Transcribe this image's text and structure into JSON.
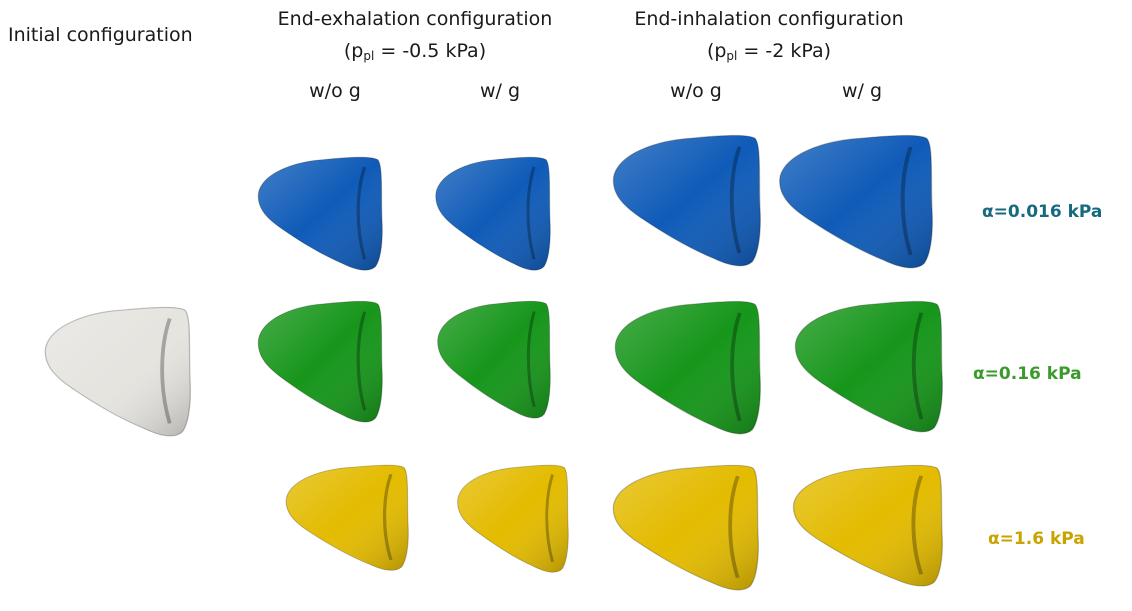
{
  "headers": {
    "initial": "Initial configuration",
    "exhalation": {
      "title": "End-exhalation configuration",
      "pressure_sub": "pl",
      "pressure_value": "= -0.5 kPa"
    },
    "inhalation": {
      "title": "End-inhalation configuration",
      "pressure_sub": "pl",
      "pressure_value": "= -2 kPa"
    },
    "col_wo_g": "w/o g",
    "col_w_g": "w/ g"
  },
  "rows": [
    {
      "label": "α=0.016 kPa",
      "color": "#0f5bb8",
      "label_color": "#17697f"
    },
    {
      "label": "α=0.16 kPa",
      "color": "#16961a",
      "label_color": "#3b9a2c"
    },
    {
      "label": "α=1.6 kPa",
      "color": "#e3bb00",
      "label_color": "#c9a400"
    }
  ],
  "initial_color": "#e6e4df"
}
